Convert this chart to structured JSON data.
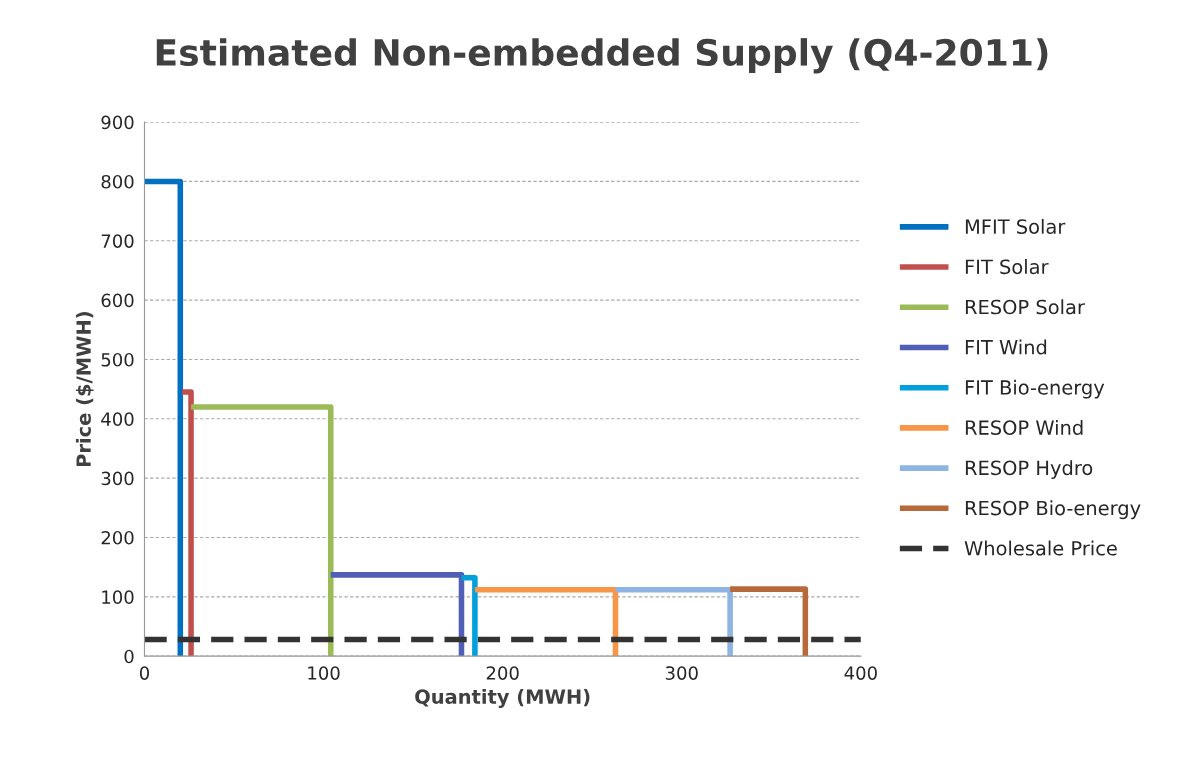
{
  "chart_data": {
    "type": "line",
    "title": "Estimated Non-embedded Supply (Q4-2011)",
    "xlabel": "Quantity (MWH)",
    "ylabel": "Price ($/MWH)",
    "xlim": [
      0,
      400
    ],
    "xticks": [
      0,
      100,
      200,
      300,
      400
    ],
    "ylim": [
      0,
      900
    ],
    "yticks": [
      0,
      100,
      200,
      300,
      400,
      500,
      600,
      700,
      800,
      900
    ],
    "grid": "y",
    "legend": "right",
    "marker": "none",
    "series": [
      {
        "name": "MFIT Solar",
        "color": "#0070c0",
        "x": [
          0,
          20,
          20
        ],
        "values": [
          800,
          800,
          0
        ]
      },
      {
        "name": "FIT Solar",
        "color": "#c0504d",
        "x": [
          21,
          26,
          26
        ],
        "values": [
          445,
          445,
          0
        ]
      },
      {
        "name": "RESOP Solar",
        "color": "#9bbb59",
        "x": [
          26,
          104,
          104
        ],
        "values": [
          420,
          420,
          0
        ]
      },
      {
        "name": "FIT Wind",
        "color": "#4f5fb5",
        "x": [
          104,
          177,
          177
        ],
        "values": [
          137,
          137,
          0
        ]
      },
      {
        "name": "FIT Bio-energy",
        "color": "#00a0dc",
        "x": [
          177,
          184.5,
          184.5
        ],
        "values": [
          132,
          132,
          0
        ]
      },
      {
        "name": "RESOP Wind",
        "color": "#f79646",
        "x": [
          184.5,
          263,
          263
        ],
        "values": [
          112,
          112,
          0
        ]
      },
      {
        "name": "RESOP Hydro",
        "color": "#8db4e2",
        "x": [
          263,
          327,
          327
        ],
        "values": [
          112,
          112,
          0
        ]
      },
      {
        "name": "RESOP Bio-energy",
        "color": "#b8693a",
        "x": [
          327,
          369,
          369
        ],
        "values": [
          113,
          113,
          0
        ]
      },
      {
        "name": "Wholesale Price",
        "color": "#333333",
        "line_style": "dashed",
        "x": [
          0,
          400
        ],
        "values": [
          28,
          28
        ]
      }
    ]
  }
}
